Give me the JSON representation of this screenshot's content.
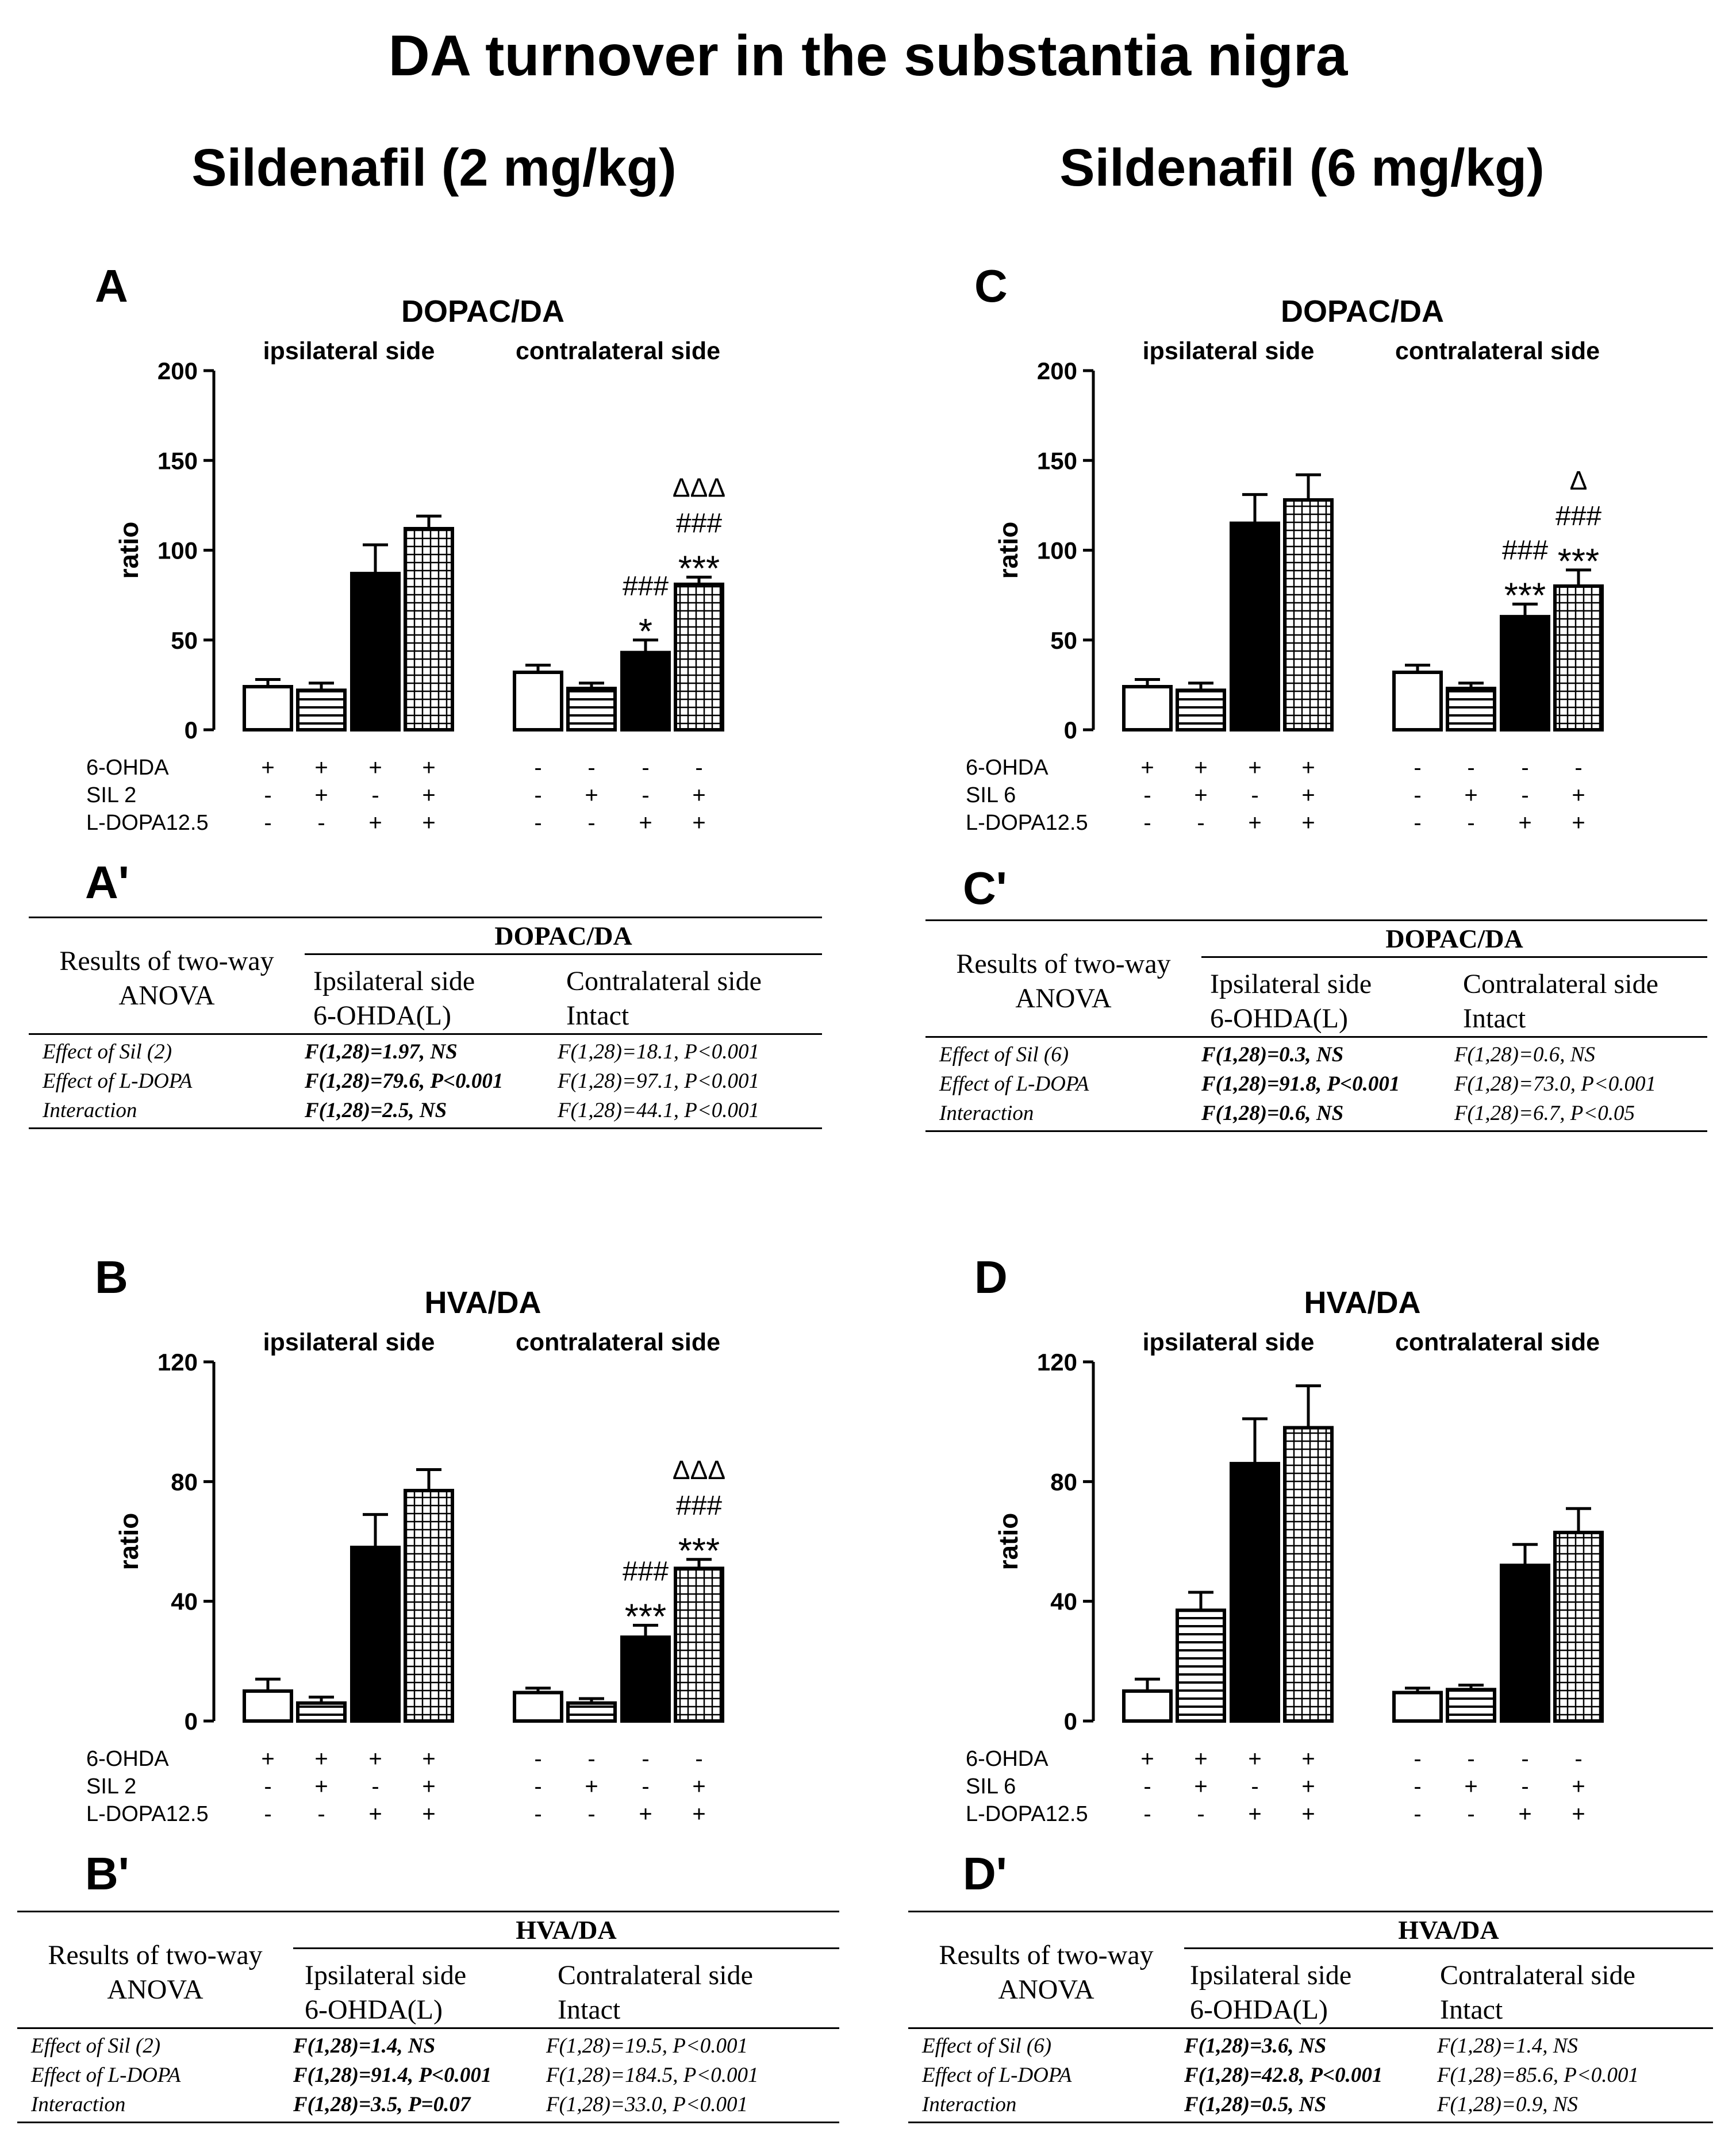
{
  "title": "DA turnover in the substantia nigra",
  "columns": [
    "Sildenafil (2 mg/kg)",
    "Sildenafil (6 mg/kg)"
  ],
  "chart_data": [
    {
      "id": "A",
      "type": "bar",
      "title": "DOPAC/DA",
      "ylabel": "ratio",
      "ylim": [
        0,
        200
      ],
      "yticks": [
        0,
        50,
        100,
        150,
        200
      ],
      "groups": [
        "ipsilateral side",
        "contralateral side"
      ],
      "values": [
        24,
        22,
        87,
        112,
        32,
        23,
        43,
        81
      ],
      "errors": [
        4,
        4,
        16,
        7,
        4,
        3,
        7,
        4
      ],
      "annotations": [
        [],
        [],
        [],
        [],
        [],
        [],
        [
          "*",
          "###"
        ],
        [
          "***",
          "###",
          "ΔΔΔ"
        ]
      ],
      "treatment_rows": [
        {
          "label": "6-OHDA",
          "marks": [
            "+",
            "+",
            "+",
            "+",
            "-",
            "-",
            "-",
            "-"
          ]
        },
        {
          "label": "SIL 2",
          "marks": [
            "-",
            "+",
            "-",
            "+",
            "-",
            "+",
            "-",
            "+"
          ]
        },
        {
          "label": "L-DOPA12.5",
          "marks": [
            "-",
            "-",
            "+",
            "+",
            "-",
            "-",
            "+",
            "+"
          ]
        }
      ]
    },
    {
      "id": "C",
      "type": "bar",
      "title": "DOPAC/DA",
      "ylabel": "ratio",
      "ylim": [
        0,
        200
      ],
      "yticks": [
        0,
        50,
        100,
        150,
        200
      ],
      "groups": [
        "ipsilateral side",
        "contralateral side"
      ],
      "values": [
        24,
        22,
        115,
        128,
        32,
        23,
        63,
        80
      ],
      "errors": [
        4,
        4,
        16,
        14,
        4,
        3,
        7,
        9
      ],
      "annotations": [
        [],
        [],
        [],
        [],
        [],
        [],
        [
          "***",
          "###"
        ],
        [
          "***",
          "###",
          "Δ"
        ]
      ],
      "treatment_rows": [
        {
          "label": "6-OHDA",
          "marks": [
            "+",
            "+",
            "+",
            "+",
            "-",
            "-",
            "-",
            "-"
          ]
        },
        {
          "label": "SIL 6",
          "marks": [
            "-",
            "+",
            "-",
            "+",
            "-",
            "+",
            "-",
            "+"
          ]
        },
        {
          "label": "L-DOPA12.5",
          "marks": [
            "-",
            "-",
            "+",
            "+",
            "-",
            "-",
            "+",
            "+"
          ]
        }
      ]
    },
    {
      "id": "B",
      "type": "bar",
      "title": "HVA/DA",
      "ylabel": "ratio",
      "ylim": [
        0,
        120
      ],
      "yticks": [
        0,
        40,
        80,
        120
      ],
      "groups": [
        "ipsilateral side",
        "contralateral side"
      ],
      "values": [
        10,
        6,
        58,
        77,
        9.5,
        6,
        28,
        51
      ],
      "errors": [
        4,
        2,
        11,
        7,
        1.5,
        1.5,
        4,
        3
      ],
      "annotations": [
        [],
        [],
        [],
        [],
        [],
        [],
        [
          "***",
          "###"
        ],
        [
          "***",
          "###",
          "ΔΔΔ"
        ]
      ],
      "treatment_rows": [
        {
          "label": "6-OHDA",
          "marks": [
            "+",
            "+",
            "+",
            "+",
            "-",
            "-",
            "-",
            "-"
          ]
        },
        {
          "label": "SIL 2",
          "marks": [
            "-",
            "+",
            "-",
            "+",
            "-",
            "+",
            "-",
            "+"
          ]
        },
        {
          "label": "L-DOPA12.5",
          "marks": [
            "-",
            "-",
            "+",
            "+",
            "-",
            "-",
            "+",
            "+"
          ]
        }
      ]
    },
    {
      "id": "D",
      "type": "bar",
      "title": "HVA/DA",
      "ylabel": "ratio",
      "ylim": [
        0,
        120
      ],
      "yticks": [
        0,
        40,
        80,
        120
      ],
      "groups": [
        "ipsilateral side",
        "contralateral side"
      ],
      "values": [
        10,
        37,
        86,
        98,
        9.5,
        10.5,
        52,
        63
      ],
      "errors": [
        4,
        6,
        15,
        14,
        1.5,
        1.5,
        7,
        8
      ],
      "annotations": [
        [],
        [],
        [],
        [],
        [],
        [],
        [],
        []
      ],
      "treatment_rows": [
        {
          "label": "6-OHDA",
          "marks": [
            "+",
            "+",
            "+",
            "+",
            "-",
            "-",
            "-",
            "-"
          ]
        },
        {
          "label": "SIL 6",
          "marks": [
            "-",
            "+",
            "-",
            "+",
            "-",
            "+",
            "-",
            "+"
          ]
        },
        {
          "label": "L-DOPA12.5",
          "marks": [
            "-",
            "-",
            "+",
            "+",
            "-",
            "-",
            "+",
            "+"
          ]
        }
      ]
    }
  ],
  "anova_tables": [
    {
      "id": "A'",
      "results_label_1": "Results of two-way",
      "results_label_2": "ANOVA",
      "metric": "DOPAC/DA",
      "col_ipsi_1": "Ipsilateral side",
      "col_ipsi_2": "6-OHDA(L)",
      "col_contra_1": "Contralateral side",
      "col_contra_2": "Intact",
      "rows": [
        {
          "effect": "Effect of Sil (2)",
          "ipsi": "F(1,28)=1.97, NS",
          "contra": "F(1,28)=18.1, P<0.001"
        },
        {
          "effect": "Effect of L-DOPA",
          "ipsi": "F(1,28)=79.6, P<0.001",
          "contra": "F(1,28)=97.1, P<0.001"
        },
        {
          "effect": "Interaction",
          "ipsi": "F(1,28)=2.5, NS",
          "contra": "F(1,28)=44.1, P<0.001"
        }
      ]
    },
    {
      "id": "C'",
      "results_label_1": "Results of two-way",
      "results_label_2": "ANOVA",
      "metric": "DOPAC/DA",
      "col_ipsi_1": "Ipsilateral side",
      "col_ipsi_2": "6-OHDA(L)",
      "col_contra_1": "Contralateral side",
      "col_contra_2": "Intact",
      "rows": [
        {
          "effect": "Effect of Sil (6)",
          "ipsi": "F(1,28)=0.3, NS",
          "contra": "F(1,28)=0.6, NS"
        },
        {
          "effect": "Effect of L-DOPA",
          "ipsi": "F(1,28)=91.8, P<0.001",
          "contra": "F(1,28)=73.0, P<0.001"
        },
        {
          "effect": "Interaction",
          "ipsi": "F(1,28)=0.6, NS",
          "contra": "F(1,28)=6.7, P<0.05"
        }
      ]
    },
    {
      "id": "B'",
      "results_label_1": "Results of two-way",
      "results_label_2": "ANOVA",
      "metric": "HVA/DA",
      "col_ipsi_1": "Ipsilateral side",
      "col_ipsi_2": "6-OHDA(L)",
      "col_contra_1": "Contralateral side",
      "col_contra_2": "Intact",
      "rows": [
        {
          "effect": "Effect of Sil (2)",
          "ipsi": "F(1,28)=1.4, NS",
          "contra": "F(1,28)=19.5, P<0.001"
        },
        {
          "effect": "Effect of L-DOPA",
          "ipsi": "F(1,28)=91.4, P<0.001",
          "contra": "F(1,28)=184.5, P<0.001"
        },
        {
          "effect": "Interaction",
          "ipsi": "F(1,28)=3.5, P=0.07",
          "contra": "F(1,28)=33.0, P<0.001"
        }
      ]
    },
    {
      "id": "D'",
      "results_label_1": "Results of two-way",
      "results_label_2": "ANOVA",
      "metric": "HVA/DA",
      "col_ipsi_1": "Ipsilateral side",
      "col_ipsi_2": "6-OHDA(L)",
      "col_contra_1": "Contralateral side",
      "col_contra_2": "Intact",
      "rows": [
        {
          "effect": "Effect of Sil (6)",
          "ipsi": "F(1,28)=3.6, NS",
          "contra": "F(1,28)=1.4, NS"
        },
        {
          "effect": "Effect of L-DOPA",
          "ipsi": "F(1,28)=42.8, P<0.001",
          "contra": "F(1,28)=85.6, P<0.001"
        },
        {
          "effect": "Interaction",
          "ipsi": "F(1,28)=0.5, NS",
          "contra": "F(1,28)=0.9, NS"
        }
      ]
    }
  ]
}
